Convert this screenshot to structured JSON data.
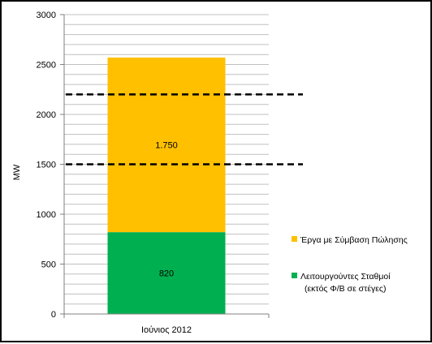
{
  "chart_data": {
    "type": "bar",
    "stacked": true,
    "categories": [
      "Ιούνιος 2012"
    ],
    "ylabel": "MW",
    "ylim": [
      0,
      3000
    ],
    "yticks": [
      0,
      500,
      1000,
      1500,
      2000,
      2500,
      3000
    ],
    "grid": true,
    "legend_position": "right",
    "series": [
      {
        "name_lines": [
          "Λειτουργούντες Σταθμοί",
          "(εκτός Φ/Β σε στέγες)"
        ],
        "values": [
          820
        ],
        "data_labels": [
          "820"
        ],
        "color": "#00b050"
      },
      {
        "name_lines": [
          "Έργα με Σύμβαση Πώλησης"
        ],
        "values": [
          1750
        ],
        "data_labels": [
          "1.750"
        ],
        "color": "#ffc000"
      }
    ],
    "reference_lines": [
      {
        "y": 2200,
        "style": "dashed",
        "color": "#000000"
      },
      {
        "y": 1500,
        "style": "dashed",
        "color": "#000000"
      }
    ]
  }
}
